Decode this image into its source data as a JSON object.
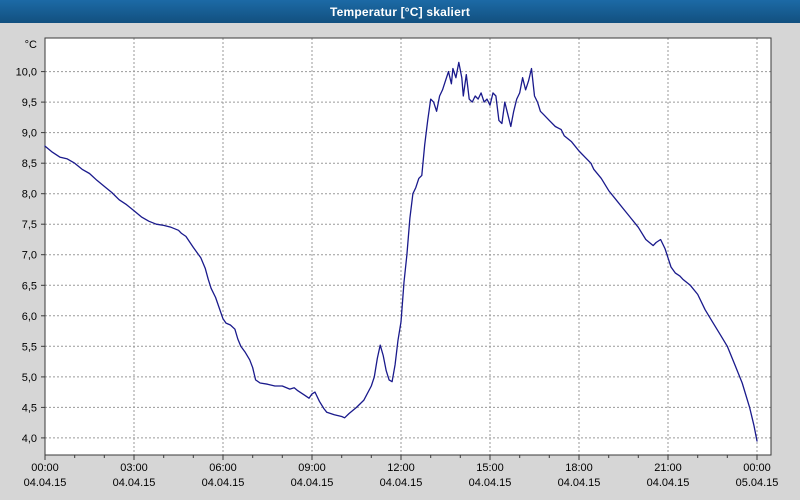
{
  "title_bar": {
    "text": "Temperatur [°C] skaliert"
  },
  "chart_data": {
    "type": "line",
    "title": "Temperatur [°C] skaliert",
    "y_unit_label": "°C",
    "ylim": [
      3.72,
      10.55
    ],
    "x_range_hours": [
      0,
      24
    ],
    "grid": true,
    "line_color": "#1a1a8c",
    "grid_color": "#9a9a9a",
    "frame_color": "#3a3a3a",
    "plot_bg": "#ffffff",
    "outer_bg": "#d6d6d6",
    "y_ticks": [
      4.0,
      4.5,
      5.0,
      5.5,
      6.0,
      6.5,
      7.0,
      7.5,
      8.0,
      8.5,
      9.0,
      9.5,
      10.0
    ],
    "y_tick_labels": [
      "4,0",
      "4,5",
      "5,0",
      "5,5",
      "6,0",
      "6,5",
      "7,0",
      "7,5",
      "8,0",
      "8,5",
      "9,0",
      "9,5",
      "10,0"
    ],
    "x_ticks_hours": [
      0,
      3,
      6,
      9,
      12,
      15,
      18,
      21,
      24
    ],
    "x_tick_time_labels": [
      "00:00",
      "03:00",
      "06:00",
      "09:00",
      "12:00",
      "15:00",
      "18:00",
      "21:00",
      "00:00"
    ],
    "x_tick_date_labels": [
      "04.04.15",
      "04.04.15",
      "04.04.15",
      "04.04.15",
      "04.04.15",
      "04.04.15",
      "04.04.15",
      "04.04.15",
      "05.04.15"
    ],
    "points": [
      [
        0.0,
        8.78
      ],
      [
        0.25,
        8.68
      ],
      [
        0.5,
        8.6
      ],
      [
        0.75,
        8.57
      ],
      [
        1.0,
        8.5
      ],
      [
        1.25,
        8.4
      ],
      [
        1.5,
        8.33
      ],
      [
        1.75,
        8.22
      ],
      [
        2.0,
        8.12
      ],
      [
        2.25,
        8.02
      ],
      [
        2.5,
        7.9
      ],
      [
        2.75,
        7.82
      ],
      [
        3.0,
        7.72
      ],
      [
        3.25,
        7.62
      ],
      [
        3.5,
        7.55
      ],
      [
        3.75,
        7.5
      ],
      [
        4.0,
        7.48
      ],
      [
        4.25,
        7.45
      ],
      [
        4.5,
        7.4
      ],
      [
        4.6,
        7.35
      ],
      [
        4.75,
        7.3
      ],
      [
        5.0,
        7.12
      ],
      [
        5.25,
        6.95
      ],
      [
        5.4,
        6.78
      ],
      [
        5.5,
        6.6
      ],
      [
        5.6,
        6.45
      ],
      [
        5.75,
        6.3
      ],
      [
        6.0,
        5.95
      ],
      [
        6.1,
        5.88
      ],
      [
        6.25,
        5.85
      ],
      [
        6.4,
        5.78
      ],
      [
        6.5,
        5.62
      ],
      [
        6.6,
        5.5
      ],
      [
        6.75,
        5.4
      ],
      [
        6.9,
        5.28
      ],
      [
        7.0,
        5.15
      ],
      [
        7.1,
        4.95
      ],
      [
        7.25,
        4.9
      ],
      [
        7.5,
        4.88
      ],
      [
        7.75,
        4.85
      ],
      [
        8.0,
        4.85
      ],
      [
        8.25,
        4.8
      ],
      [
        8.4,
        4.82
      ],
      [
        8.5,
        4.78
      ],
      [
        8.75,
        4.7
      ],
      [
        8.9,
        4.65
      ],
      [
        9.0,
        4.72
      ],
      [
        9.1,
        4.75
      ],
      [
        9.25,
        4.6
      ],
      [
        9.4,
        4.48
      ],
      [
        9.5,
        4.42
      ],
      [
        9.75,
        4.38
      ],
      [
        10.0,
        4.35
      ],
      [
        10.1,
        4.33
      ],
      [
        10.25,
        4.4
      ],
      [
        10.5,
        4.5
      ],
      [
        10.75,
        4.62
      ],
      [
        11.0,
        4.85
      ],
      [
        11.1,
        5.0
      ],
      [
        11.2,
        5.3
      ],
      [
        11.3,
        5.52
      ],
      [
        11.4,
        5.35
      ],
      [
        11.5,
        5.1
      ],
      [
        11.6,
        4.95
      ],
      [
        11.7,
        4.92
      ],
      [
        11.8,
        5.2
      ],
      [
        11.9,
        5.6
      ],
      [
        12.0,
        5.9
      ],
      [
        12.1,
        6.55
      ],
      [
        12.2,
        7.0
      ],
      [
        12.3,
        7.6
      ],
      [
        12.4,
        8.0
      ],
      [
        12.5,
        8.1
      ],
      [
        12.6,
        8.25
      ],
      [
        12.7,
        8.3
      ],
      [
        12.8,
        8.8
      ],
      [
        12.9,
        9.2
      ],
      [
        13.0,
        9.55
      ],
      [
        13.1,
        9.5
      ],
      [
        13.2,
        9.35
      ],
      [
        13.3,
        9.6
      ],
      [
        13.4,
        9.7
      ],
      [
        13.5,
        9.85
      ],
      [
        13.6,
        10.0
      ],
      [
        13.7,
        9.8
      ],
      [
        13.75,
        10.05
      ],
      [
        13.85,
        9.9
      ],
      [
        13.95,
        10.15
      ],
      [
        14.05,
        9.9
      ],
      [
        14.1,
        9.6
      ],
      [
        14.2,
        9.95
      ],
      [
        14.3,
        9.55
      ],
      [
        14.4,
        9.5
      ],
      [
        14.5,
        9.6
      ],
      [
        14.6,
        9.55
      ],
      [
        14.7,
        9.65
      ],
      [
        14.8,
        9.5
      ],
      [
        14.9,
        9.55
      ],
      [
        15.0,
        9.45
      ],
      [
        15.1,
        9.65
      ],
      [
        15.2,
        9.6
      ],
      [
        15.3,
        9.2
      ],
      [
        15.4,
        9.15
      ],
      [
        15.5,
        9.5
      ],
      [
        15.6,
        9.3
      ],
      [
        15.7,
        9.1
      ],
      [
        15.8,
        9.35
      ],
      [
        15.9,
        9.55
      ],
      [
        16.0,
        9.65
      ],
      [
        16.1,
        9.9
      ],
      [
        16.2,
        9.7
      ],
      [
        16.3,
        9.85
      ],
      [
        16.4,
        10.05
      ],
      [
        16.5,
        9.6
      ],
      [
        16.6,
        9.5
      ],
      [
        16.7,
        9.35
      ],
      [
        16.8,
        9.3
      ],
      [
        17.0,
        9.2
      ],
      [
        17.2,
        9.1
      ],
      [
        17.4,
        9.05
      ],
      [
        17.5,
        8.95
      ],
      [
        17.75,
        8.85
      ],
      [
        18.0,
        8.7
      ],
      [
        18.2,
        8.6
      ],
      [
        18.4,
        8.5
      ],
      [
        18.5,
        8.4
      ],
      [
        18.75,
        8.25
      ],
      [
        19.0,
        8.05
      ],
      [
        19.25,
        7.9
      ],
      [
        19.5,
        7.75
      ],
      [
        19.75,
        7.6
      ],
      [
        20.0,
        7.45
      ],
      [
        20.25,
        7.25
      ],
      [
        20.5,
        7.15
      ],
      [
        20.6,
        7.2
      ],
      [
        20.75,
        7.25
      ],
      [
        20.9,
        7.1
      ],
      [
        21.0,
        6.95
      ],
      [
        21.1,
        6.8
      ],
      [
        21.25,
        6.7
      ],
      [
        21.4,
        6.65
      ],
      [
        21.5,
        6.6
      ],
      [
        21.75,
        6.5
      ],
      [
        22.0,
        6.35
      ],
      [
        22.25,
        6.1
      ],
      [
        22.5,
        5.9
      ],
      [
        22.75,
        5.7
      ],
      [
        23.0,
        5.5
      ],
      [
        23.25,
        5.2
      ],
      [
        23.5,
        4.9
      ],
      [
        23.75,
        4.5
      ],
      [
        23.9,
        4.2
      ],
      [
        24.0,
        3.95
      ]
    ]
  }
}
